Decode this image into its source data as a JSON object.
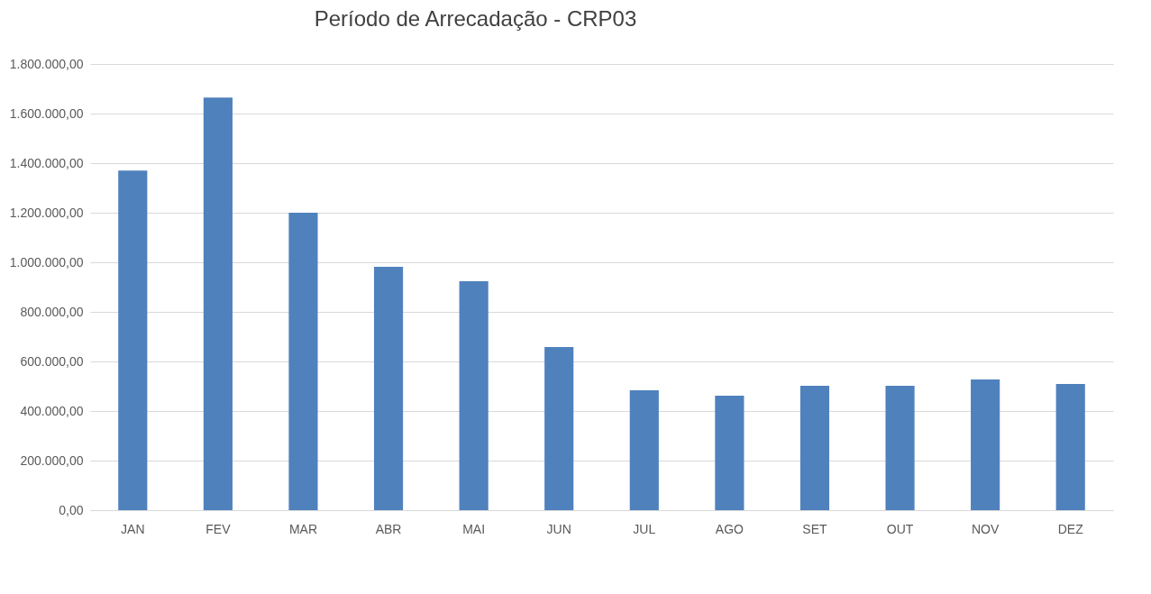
{
  "chart_data": {
    "type": "bar",
    "title": "Período de Arrecadação - CRP03",
    "categories": [
      "JAN",
      "FEV",
      "MAR",
      "ABR",
      "MAI",
      "JUN",
      "JUL",
      "AGO",
      "SET",
      "OUT",
      "NOV",
      "DEZ"
    ],
    "values": [
      1370000,
      1665000,
      1200000,
      982000,
      924000,
      658000,
      484000,
      462000,
      502000,
      502000,
      527000,
      509000
    ],
    "color": "#4f81bd",
    "ylim": [
      0,
      1800000
    ],
    "yticks": [
      {
        "value": 0,
        "label": "0,00"
      },
      {
        "value": 200000,
        "label": "200.000,00"
      },
      {
        "value": 400000,
        "label": "400.000,00"
      },
      {
        "value": 600000,
        "label": "600.000,00"
      },
      {
        "value": 800000,
        "label": "800.000,00"
      },
      {
        "value": 1000000,
        "label": "1.000.000,00"
      },
      {
        "value": 1200000,
        "label": "1.200.000,00"
      },
      {
        "value": 1400000,
        "label": "1.400.000,00"
      },
      {
        "value": 1600000,
        "label": "1.600.000,00"
      },
      {
        "value": 1800000,
        "label": "1.800.000,00"
      }
    ],
    "grid": "y"
  }
}
